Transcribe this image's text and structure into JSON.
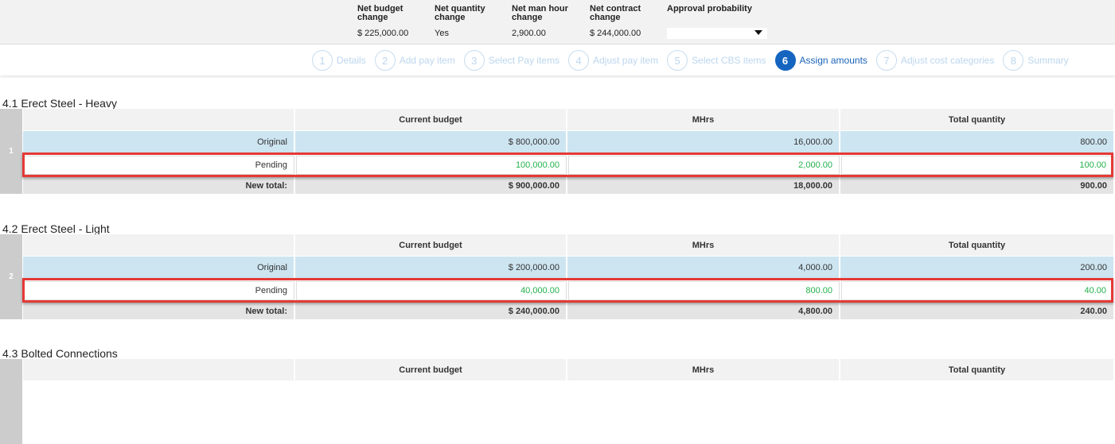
{
  "summary": [
    {
      "label": "Net budget change",
      "value": "$ 225,000.00"
    },
    {
      "label": "Net quantity change",
      "value": "Yes"
    },
    {
      "label": "Net man hour change",
      "value": "2,900.00"
    },
    {
      "label": "Net contract change",
      "value": "$ 244,000.00"
    }
  ],
  "approval": {
    "label": "Approval probability",
    "value": ""
  },
  "steps": [
    {
      "n": "1",
      "label": "Details"
    },
    {
      "n": "2",
      "label": "Add pay item"
    },
    {
      "n": "3",
      "label": "Select Pay items"
    },
    {
      "n": "4",
      "label": "Adjust pay item"
    },
    {
      "n": "5",
      "label": "Select CBS items"
    },
    {
      "n": "6",
      "label": "Assign amounts"
    },
    {
      "n": "7",
      "label": "Adjust cost categories"
    },
    {
      "n": "8",
      "label": "Summary"
    }
  ],
  "columns": [
    "Current budget",
    "MHrs",
    "Total quantity"
  ],
  "sections": [
    {
      "title": "4.1 Erect Steel - Heavy",
      "index": "1",
      "original": {
        "label": "Original",
        "values": [
          "$ 800,000.00",
          "16,000.00",
          "800.00"
        ]
      },
      "pending": {
        "label": "Pending",
        "values": [
          "100,000.00",
          "2,000.00",
          "100.00"
        ]
      },
      "total": {
        "label": "New total:",
        "values": [
          "$ 900,000.00",
          "18,000.00",
          "900.00"
        ]
      }
    },
    {
      "title": "4.2 Erect Steel - Light",
      "index": "2",
      "original": {
        "label": "Original",
        "values": [
          "$ 200,000.00",
          "4,000.00",
          "200.00"
        ]
      },
      "pending": {
        "label": "Pending",
        "values": [
          "40,000.00",
          "800.00",
          "40.00"
        ]
      },
      "total": {
        "label": "New total:",
        "values": [
          "$ 240,000.00",
          "4,800.00",
          "240.00"
        ]
      }
    },
    {
      "title": "4.3 Bolted Connections"
    }
  ]
}
